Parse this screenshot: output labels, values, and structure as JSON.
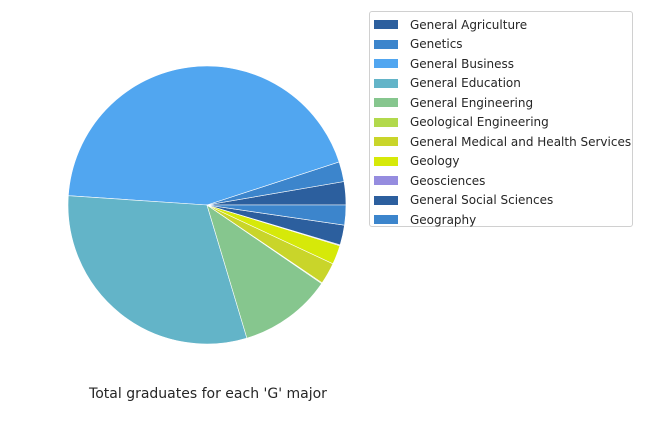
{
  "chart_data": {
    "type": "pie",
    "title": "Total graduates for each 'G' major",
    "categories": [
      "General Agriculture",
      "Genetics",
      "General Business",
      "General Education",
      "General Engineering",
      "Geological Engineering",
      "General Medical and Health Services",
      "Geology",
      "Geosciences",
      "General Social Sciences",
      "Geography"
    ],
    "values": [
      2.8,
      2.4,
      45.5,
      31.8,
      11.2,
      0.1,
      2.6,
      2.3,
      0.1,
      2.4,
      2.4
    ],
    "colors": [
      "#2c5f9e",
      "#3c85cc",
      "#51a6f0",
      "#63b4c8",
      "#86c68e",
      "#b2d94c",
      "#c9d52a",
      "#d6e909",
      "#958cdf",
      "#2c5f9e",
      "#3c85cc"
    ],
    "start_angle_deg": 0,
    "direction": "counterclockwise",
    "legend_position": "upper-right"
  }
}
